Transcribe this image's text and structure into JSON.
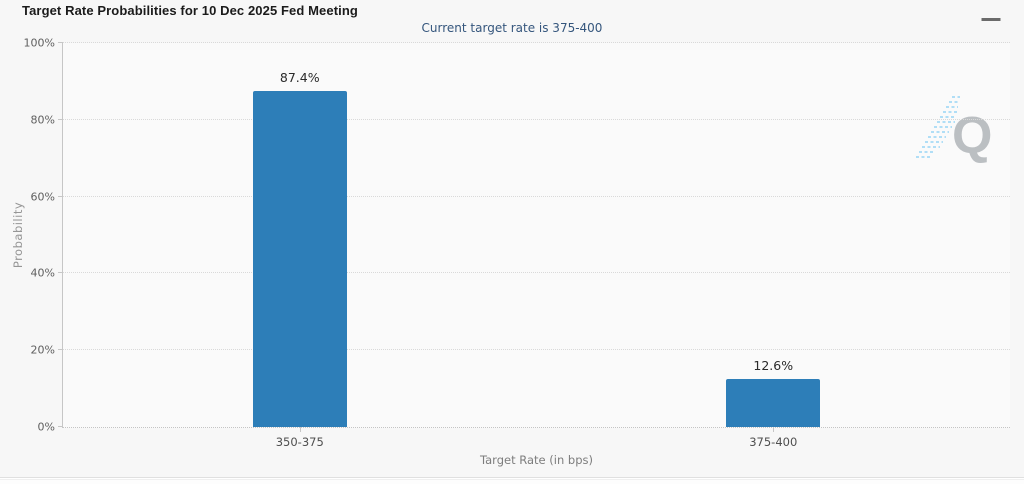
{
  "chart_data": {
    "type": "bar",
    "title": "Target Rate Probabilities for 10 Dec 2025 Fed Meeting",
    "subtitle": "Current target rate is 375-400",
    "categories": [
      "350-375",
      "375-400"
    ],
    "values": [
      87.4,
      12.6
    ],
    "value_labels": [
      "87.4%",
      "12.6%"
    ],
    "xlabel": "Target Rate (in bps)",
    "ylabel": "Probability",
    "ylim": [
      0,
      100
    ],
    "yticks": [
      0,
      20,
      40,
      60,
      80,
      100
    ],
    "ytick_labels": [
      "0%",
      "20%",
      "40%",
      "60%",
      "80%",
      "100%"
    ],
    "grid": "dotted-horizontal",
    "legend": "none",
    "bar_color": "#2d7eb8"
  },
  "toolbar": {
    "menu_icon": "hamburger-menu"
  },
  "watermark": {
    "letter": "Q"
  },
  "colors": {
    "card_background": "#f7f7f7",
    "title_text": "#1b1b1b",
    "subtitle_text": "#35567d",
    "axis_line": "#c6c6c6",
    "grid_line": "#d9d9d9",
    "tick_label": "#5f5f5f",
    "axis_title": "#8a8a8a",
    "bar": "#2d7eb8",
    "data_label": "#2b2b2b",
    "watermark_q": "#b5b9bd",
    "watermark_hatch": "#a9dcf6"
  }
}
